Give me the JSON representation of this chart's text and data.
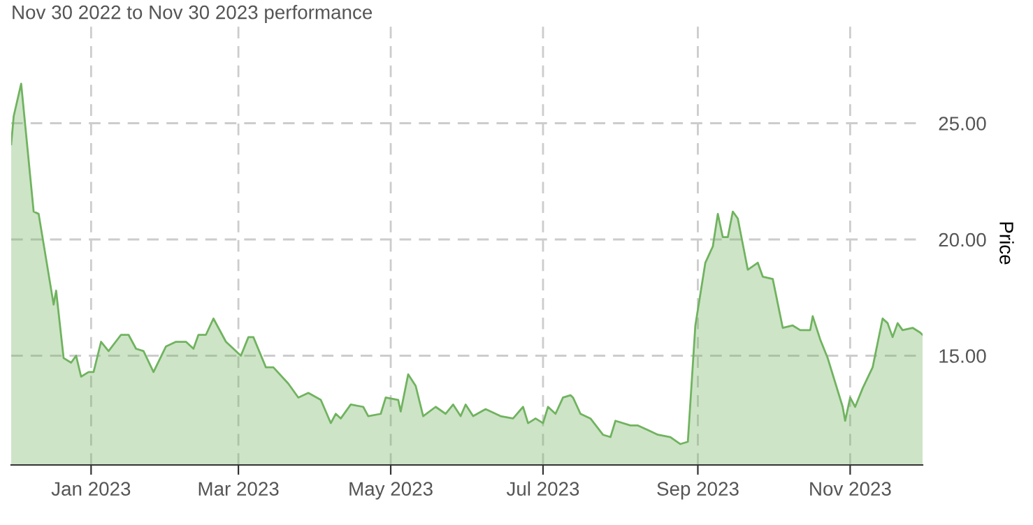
{
  "chart_data": {
    "type": "area",
    "title": "Nov 30 2022 to Nov 30 2023 performance",
    "ylabel": "Price",
    "x": [
      "2022-11-30",
      "2022-12-01",
      "2022-12-04",
      "2022-12-09",
      "2022-12-11",
      "2022-12-17",
      "2022-12-18",
      "2022-12-21",
      "2022-12-24",
      "2022-12-26",
      "2022-12-28",
      "2022-12-31",
      "2023-01-02",
      "2023-01-05",
      "2023-01-08",
      "2023-01-13",
      "2023-01-16",
      "2023-01-19",
      "2023-01-22",
      "2023-01-26",
      "2023-01-31",
      "2023-02-04",
      "2023-02-08",
      "2023-02-11",
      "2023-02-13",
      "2023-02-16",
      "2023-02-19",
      "2023-02-24",
      "2023-03-02",
      "2023-03-05",
      "2023-03-07",
      "2023-03-12",
      "2023-03-15",
      "2023-03-21",
      "2023-03-25",
      "2023-03-29",
      "2023-04-03",
      "2023-04-07",
      "2023-04-09",
      "2023-04-11",
      "2023-04-15",
      "2023-04-20",
      "2023-04-22",
      "2023-04-27",
      "2023-04-29",
      "2023-05-04",
      "2023-05-05",
      "2023-05-08",
      "2023-05-11",
      "2023-05-14",
      "2023-05-19",
      "2023-05-23",
      "2023-05-26",
      "2023-05-29",
      "2023-05-31",
      "2023-06-03",
      "2023-06-08",
      "2023-06-14",
      "2023-06-19",
      "2023-06-23",
      "2023-06-25",
      "2023-06-28",
      "2023-07-01",
      "2023-07-03",
      "2023-07-06",
      "2023-07-09",
      "2023-07-12",
      "2023-07-13",
      "2023-07-16",
      "2023-07-20",
      "2023-07-25",
      "2023-07-28",
      "2023-07-30",
      "2023-08-05",
      "2023-08-08",
      "2023-08-12",
      "2023-08-16",
      "2023-08-21",
      "2023-08-25",
      "2023-08-28",
      "2023-08-31",
      "2023-09-04",
      "2023-09-07",
      "2023-09-09",
      "2023-09-11",
      "2023-09-13",
      "2023-09-15",
      "2023-09-17",
      "2023-09-21",
      "2023-09-25",
      "2023-09-27",
      "2023-10-01",
      "2023-10-05",
      "2023-10-09",
      "2023-10-12",
      "2023-10-16",
      "2023-10-17",
      "2023-10-20",
      "2023-10-23",
      "2023-10-29",
      "2023-10-30",
      "2023-11-01",
      "2023-11-03",
      "2023-11-06",
      "2023-11-10",
      "2023-11-14",
      "2023-11-16",
      "2023-11-18",
      "2023-11-20",
      "2023-11-22",
      "2023-11-26",
      "2023-11-29",
      "2023-11-30"
    ],
    "series": [
      {
        "color": "#70b35f",
        "values": [
          24.1,
          25.3,
          26.7,
          21.2,
          21.1,
          17.2,
          17.8,
          14.9,
          14.7,
          15.0,
          14.1,
          14.3,
          14.3,
          15.6,
          15.2,
          15.9,
          15.9,
          15.3,
          15.2,
          14.3,
          15.4,
          15.6,
          15.6,
          15.3,
          15.9,
          15.9,
          16.6,
          15.6,
          15.0,
          15.8,
          15.8,
          14.5,
          14.5,
          13.8,
          13.2,
          13.4,
          13.1,
          12.1,
          12.5,
          12.3,
          12.9,
          12.8,
          12.4,
          12.5,
          13.2,
          13.1,
          12.6,
          14.2,
          13.7,
          12.4,
          12.8,
          12.5,
          12.9,
          12.4,
          12.9,
          12.4,
          12.7,
          12.4,
          12.3,
          12.8,
          12.1,
          12.3,
          12.1,
          12.8,
          12.5,
          13.2,
          13.3,
          13.2,
          12.5,
          12.3,
          11.6,
          11.5,
          12.2,
          12.0,
          12.0,
          11.8,
          11.6,
          11.5,
          11.2,
          11.3,
          16.3,
          19.0,
          19.7,
          21.1,
          20.1,
          20.1,
          21.2,
          20.9,
          18.7,
          19.0,
          18.4,
          18.3,
          16.2,
          16.3,
          16.1,
          16.1,
          16.7,
          15.7,
          14.9,
          12.8,
          12.2,
          13.2,
          12.8,
          13.6,
          14.5,
          16.6,
          16.4,
          15.8,
          16.4,
          16.1,
          16.2,
          16.0,
          15.9
        ]
      }
    ],
    "xlim": [
      "2022-11-30",
      "2023-11-30"
    ],
    "xticks": [
      {
        "value": "2023-01-01",
        "label": "Jan 2023"
      },
      {
        "value": "2023-03-01",
        "label": "Mar 2023"
      },
      {
        "value": "2023-05-01",
        "label": "May 2023"
      },
      {
        "value": "2023-07-01",
        "label": "Jul 2023"
      },
      {
        "value": "2023-09-01",
        "label": "Sep 2023"
      },
      {
        "value": "2023-11-01",
        "label": "Nov 2023"
      }
    ],
    "ylim": [
      10.3,
      29.4
    ],
    "yticks": [
      {
        "value": 15,
        "label": "15.00"
      },
      {
        "value": 20,
        "label": "20.00"
      },
      {
        "value": 25,
        "label": "25.00"
      }
    ],
    "grid": true,
    "line_style": "solid",
    "marker": "none",
    "legend": false
  }
}
